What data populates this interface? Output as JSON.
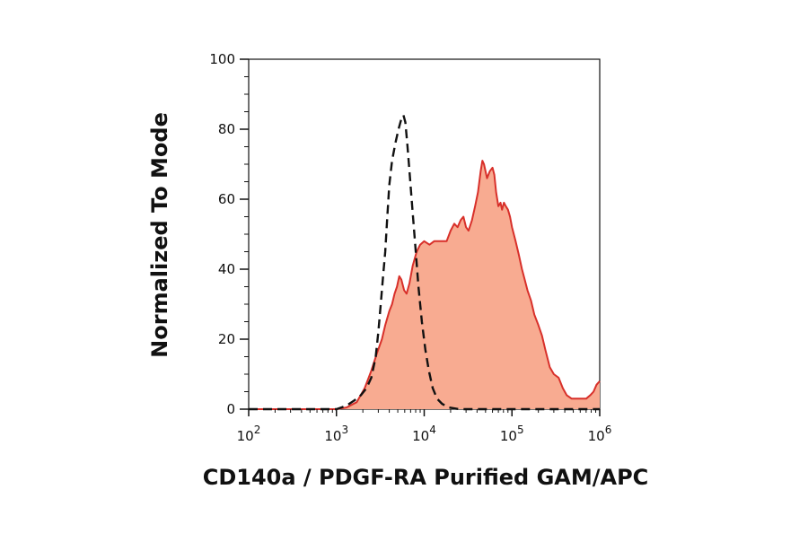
{
  "chart_data": {
    "type": "area",
    "title": "",
    "xlabel": "CD140a / PDGF-RA Purified GAM/APC",
    "ylabel": "Normalized To Mode",
    "x_scale": "log",
    "xlim": [
      100,
      1000000
    ],
    "ylim": [
      0,
      100
    ],
    "x_ticks": [
      {
        "value": 100,
        "base": "10",
        "exp": "2"
      },
      {
        "value": 1000,
        "base": "10",
        "exp": "3"
      },
      {
        "value": 10000,
        "base": "10",
        "exp": "4"
      },
      {
        "value": 100000,
        "base": "10",
        "exp": "5"
      },
      {
        "value": 1000000,
        "base": "10",
        "exp": "6"
      }
    ],
    "y_ticks": [
      {
        "value": 0,
        "label": "0"
      },
      {
        "value": 20,
        "label": "20"
      },
      {
        "value": 40,
        "label": "40"
      },
      {
        "value": 60,
        "label": "60"
      },
      {
        "value": 80,
        "label": "80"
      },
      {
        "value": 100,
        "label": "100"
      }
    ],
    "grid": false,
    "legend": "none",
    "series": [
      {
        "style": "filled-solid",
        "stroke": "#d8302a",
        "fill": "#f8ab91",
        "points": [
          [
            100,
            0
          ],
          [
            1000,
            0
          ],
          [
            1300,
            0.5
          ],
          [
            1700,
            2
          ],
          [
            2100,
            6
          ],
          [
            2500,
            11
          ],
          [
            2900,
            16
          ],
          [
            3300,
            20
          ],
          [
            3600,
            24
          ],
          [
            4000,
            28
          ],
          [
            4300,
            30
          ],
          [
            4600,
            33
          ],
          [
            4900,
            35
          ],
          [
            5200,
            38
          ],
          [
            5500,
            37
          ],
          [
            5900,
            34
          ],
          [
            6300,
            33
          ],
          [
            6800,
            36
          ],
          [
            7400,
            41
          ],
          [
            8200,
            45
          ],
          [
            9000,
            47
          ],
          [
            10000,
            48
          ],
          [
            11500,
            47
          ],
          [
            13000,
            48
          ],
          [
            14500,
            48
          ],
          [
            16000,
            48
          ],
          [
            18000,
            48
          ],
          [
            20000,
            51
          ],
          [
            22000,
            53
          ],
          [
            24000,
            52
          ],
          [
            26000,
            54
          ],
          [
            28000,
            55
          ],
          [
            30000,
            52
          ],
          [
            32000,
            51
          ],
          [
            35000,
            54
          ],
          [
            38000,
            58
          ],
          [
            41000,
            62
          ],
          [
            44000,
            68
          ],
          [
            46000,
            71
          ],
          [
            48000,
            70
          ],
          [
            52000,
            66
          ],
          [
            56000,
            68
          ],
          [
            60000,
            69
          ],
          [
            63000,
            67
          ],
          [
            66000,
            62
          ],
          [
            70000,
            58
          ],
          [
            74000,
            59
          ],
          [
            77000,
            57
          ],
          [
            81000,
            59
          ],
          [
            85000,
            58
          ],
          [
            90000,
            57
          ],
          [
            95000,
            55
          ],
          [
            100000,
            52
          ],
          [
            110000,
            48
          ],
          [
            120000,
            44
          ],
          [
            130000,
            40
          ],
          [
            140000,
            37
          ],
          [
            150000,
            34
          ],
          [
            165000,
            31
          ],
          [
            180000,
            27
          ],
          [
            200000,
            24
          ],
          [
            220000,
            21
          ],
          [
            240000,
            17
          ],
          [
            270000,
            12
          ],
          [
            300000,
            10
          ],
          [
            340000,
            9
          ],
          [
            380000,
            6
          ],
          [
            420000,
            4
          ],
          [
            480000,
            3
          ],
          [
            550000,
            3
          ],
          [
            620000,
            3
          ],
          [
            700000,
            3
          ],
          [
            780000,
            4
          ],
          [
            850000,
            5
          ],
          [
            920000,
            7
          ],
          [
            1000000,
            8
          ]
        ]
      },
      {
        "style": "dashed",
        "stroke": "#111111",
        "points": [
          [
            100,
            0
          ],
          [
            1000,
            0
          ],
          [
            1300,
            1
          ],
          [
            1600,
            2.5
          ],
          [
            1900,
            4
          ],
          [
            2200,
            6
          ],
          [
            2500,
            9
          ],
          [
            2800,
            15
          ],
          [
            3000,
            22
          ],
          [
            3200,
            30
          ],
          [
            3400,
            38
          ],
          [
            3600,
            45
          ],
          [
            3800,
            55
          ],
          [
            4000,
            64
          ],
          [
            4300,
            71
          ],
          [
            4700,
            76
          ],
          [
            5100,
            80
          ],
          [
            5500,
            83
          ],
          [
            5800,
            84
          ],
          [
            6100,
            82
          ],
          [
            6400,
            76
          ],
          [
            6800,
            68
          ],
          [
            7300,
            58
          ],
          [
            7900,
            47
          ],
          [
            8600,
            35
          ],
          [
            9400,
            25
          ],
          [
            10300,
            17
          ],
          [
            11300,
            11
          ],
          [
            12500,
            6
          ],
          [
            14000,
            3
          ],
          [
            16000,
            1.5
          ],
          [
            19000,
            0.5
          ],
          [
            25000,
            0
          ],
          [
            40000,
            0
          ],
          [
            1000000,
            0
          ]
        ]
      }
    ]
  }
}
